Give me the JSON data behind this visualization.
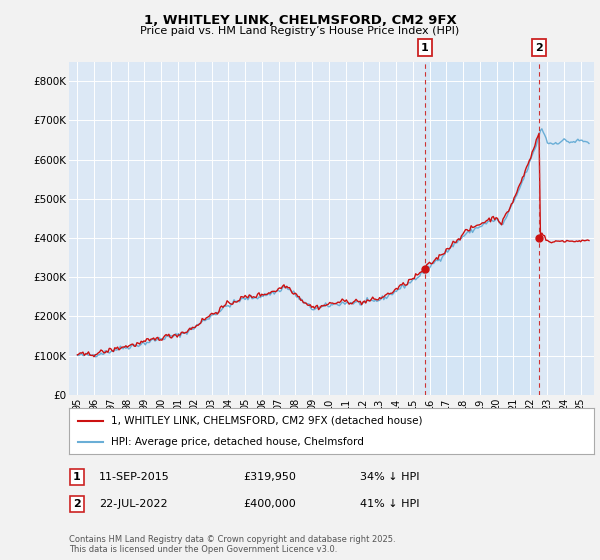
{
  "title": "1, WHITLEY LINK, CHELMSFORD, CM2 9FX",
  "subtitle": "Price paid vs. HM Land Registry’s House Price Index (HPI)",
  "background_color": "#f0f0f0",
  "plot_bg_color": "#dce8f5",
  "plot_bg_color_highlight": "#ccdff0",
  "hpi_color": "#6aaed6",
  "price_color": "#cc1111",
  "dashed_line_color": "#cc3333",
  "grid_color": "#ffffff",
  "ylim": [
    0,
    850000
  ],
  "yticks": [
    0,
    100000,
    200000,
    300000,
    400000,
    500000,
    600000,
    700000,
    800000
  ],
  "ytick_labels": [
    "£0",
    "£100K",
    "£200K",
    "£300K",
    "£400K",
    "£500K",
    "£600K",
    "£700K",
    "£800K"
  ],
  "sale1_date": 2015.71,
  "sale1_price": 319950,
  "sale2_date": 2022.54,
  "sale2_price": 400000,
  "sale1_text": "11-SEP-2015",
  "sale1_price_text": "£319,950",
  "sale1_hpi_text": "34% ↓ HPI",
  "sale2_text": "22-JUL-2022",
  "sale2_price_text": "£400,000",
  "sale2_hpi_text": "41% ↓ HPI",
  "footer": "Contains HM Land Registry data © Crown copyright and database right 2025.\nThis data is licensed under the Open Government Licence v3.0.",
  "legend_label1": "1, WHITLEY LINK, CHELMSFORD, CM2 9FX (detached house)",
  "legend_label2": "HPI: Average price, detached house, Chelmsford",
  "xlim_min": 1994.5,
  "xlim_max": 2025.8
}
